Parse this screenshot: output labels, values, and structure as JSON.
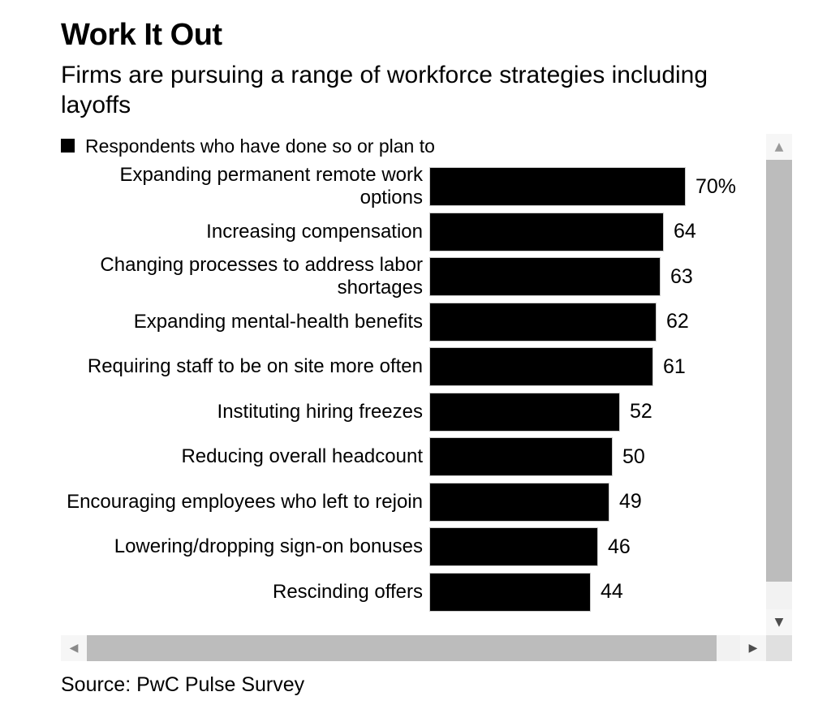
{
  "header": {
    "title": "Work It Out",
    "subtitle": "Firms are pursuing a range of workforce strategies including layoffs"
  },
  "legend": {
    "label": "Respondents who have done so or plan to",
    "swatch_color": "#000000"
  },
  "chart_data": {
    "type": "bar",
    "orientation": "horizontal",
    "title": "Work It Out",
    "subtitle": "Firms are pursuing a range of workforce strategies including layoffs",
    "legend": [
      {
        "label": "Respondents who have done so or plan to",
        "color": "#000000"
      }
    ],
    "legend_position": "top-left",
    "categories": [
      "Expanding permanent remote work options",
      "Increasing compensation",
      "Changing processes to address labor shortages",
      "Expanding mental-health benefits",
      "Requiring staff to be on site more often",
      "Instituting hiring freezes",
      "Reducing overall headcount",
      "Encouraging employees who left to rejoin",
      "Lowering/dropping sign-on bonuses",
      "Rescinding offers"
    ],
    "values": [
      70,
      64,
      63,
      62,
      61,
      52,
      50,
      49,
      46,
      44
    ],
    "value_labels": [
      "70%",
      "64",
      "63",
      "62",
      "61",
      "52",
      "50",
      "49",
      "46",
      "44"
    ],
    "unit": "percent",
    "xlim": [
      0,
      70
    ],
    "bar_color": "#000000",
    "grid": false,
    "value_label_position": "outside-end"
  },
  "source": "Source: PwC Pulse Survey",
  "scrollbars": {
    "vertical": {
      "up_arrow": "▲",
      "down_arrow": "▼"
    },
    "horizontal": {
      "left_arrow": "◀",
      "right_arrow": "▶"
    }
  },
  "colors": {
    "background": "#ffffff",
    "text": "#000000",
    "bar": "#000000",
    "bar_edge": "#cccccc",
    "scrollbar_track": "#f2f2f2",
    "scrollbar_thumb": "#bcbcbc",
    "scrollbar_corner": "#e0e0e0",
    "scrollbar_arrow_active": "#4e4e4e",
    "scrollbar_arrow_inactive": "#9a9a9a"
  }
}
